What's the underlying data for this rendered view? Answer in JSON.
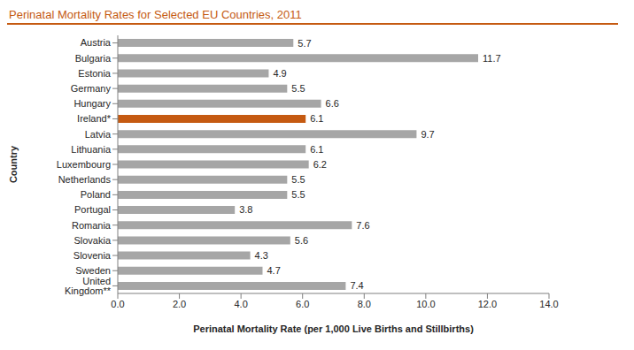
{
  "chart_data": {
    "type": "bar",
    "orientation": "horizontal",
    "title": "Perinatal Mortality Rates for Selected EU Countries, 2011",
    "x_label": "Perinatal Mortality Rate (per 1,000 Live Births and Stillbirths)",
    "y_label": "Country",
    "categories": [
      "Austria",
      "Bulgaria",
      "Estonia",
      "Germany",
      "Hungary",
      "Ireland*",
      "Latvia",
      "Lithuania",
      "Luxembourg",
      "Netherlands",
      "Poland",
      "Portugal",
      "Romania",
      "Slovakia",
      "Slovenia",
      "Sweden",
      "United Kingdom**"
    ],
    "values": [
      5.7,
      11.7,
      4.9,
      5.5,
      6.6,
      6.1,
      9.7,
      6.1,
      6.2,
      5.5,
      5.5,
      3.8,
      7.6,
      5.6,
      4.3,
      4.7,
      7.4
    ],
    "colors": [
      "#a6a6a6",
      "#a6a6a6",
      "#a6a6a6",
      "#a6a6a6",
      "#a6a6a6",
      "#c55a11",
      "#a6a6a6",
      "#a6a6a6",
      "#a6a6a6",
      "#a6a6a6",
      "#a6a6a6",
      "#a6a6a6",
      "#a6a6a6",
      "#a6a6a6",
      "#a6a6a6",
      "#a6a6a6",
      "#a6a6a6"
    ],
    "xlim": [
      0,
      14
    ],
    "xticks": [
      {
        "value": 0,
        "label": "0.0"
      },
      {
        "value": 2,
        "label": "2.0"
      },
      {
        "value": 4,
        "label": "4.0"
      },
      {
        "value": 6,
        "label": "6.0"
      },
      {
        "value": 8,
        "label": "8.0"
      },
      {
        "value": 10,
        "label": "10.0"
      },
      {
        "value": 12,
        "label": "12.0"
      },
      {
        "value": 14,
        "label": "14.0"
      }
    ],
    "data_labels": true,
    "grid": false
  }
}
